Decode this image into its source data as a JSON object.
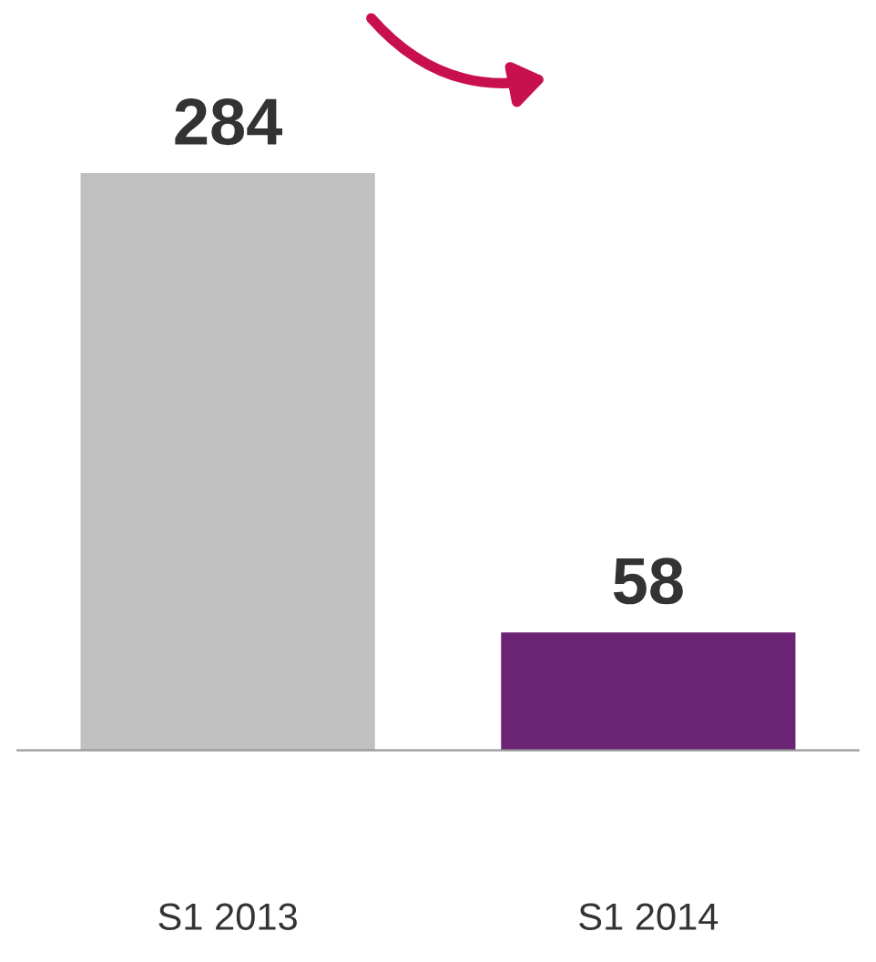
{
  "chart_data": {
    "type": "bar",
    "categories": [
      "S1 2013",
      "S1 2014"
    ],
    "values": [
      284,
      58
    ],
    "colors": [
      "#c0c0c0",
      "#6b2473"
    ],
    "data_labels": true,
    "grid": false,
    "legend": false
  }
}
